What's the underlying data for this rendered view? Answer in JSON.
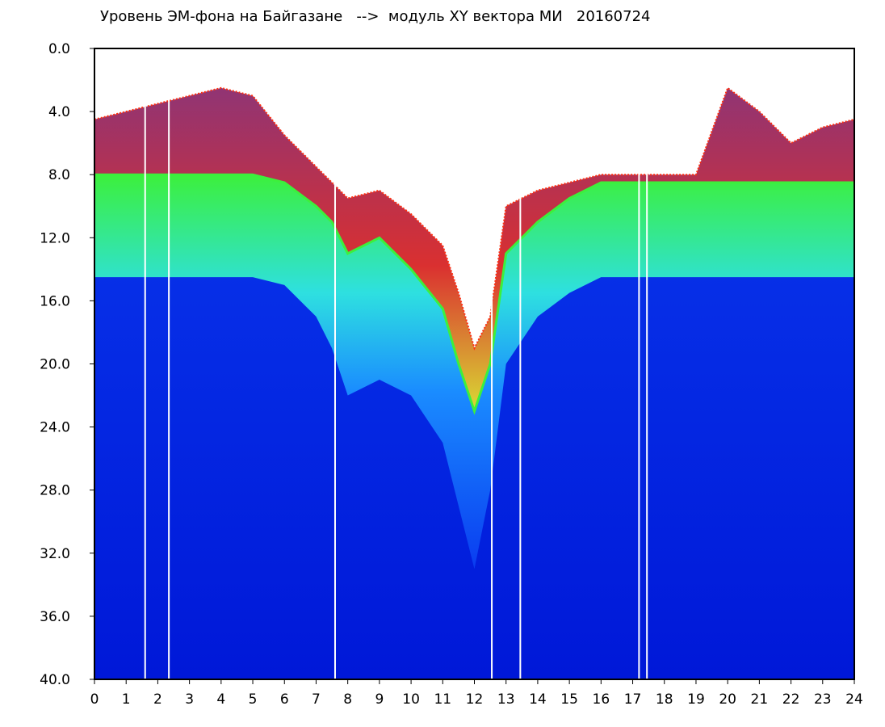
{
  "chart_data": {
    "type": "heatmap",
    "title": "Уровень ЭМ-фона на Байгазане   -->  модуль XY вектора МИ   20160724",
    "xlabel": "",
    "ylabel": "",
    "xlim": [
      0,
      24
    ],
    "ylim": [
      0,
      40
    ],
    "y_inverted": true,
    "x_ticks": [
      "0",
      "1",
      "2",
      "3",
      "4",
      "5",
      "6",
      "7",
      "8",
      "9",
      "10",
      "11",
      "12",
      "13",
      "14",
      "15",
      "16",
      "17",
      "18",
      "19",
      "20",
      "21",
      "22",
      "23",
      "24"
    ],
    "y_ticks": [
      "0.0",
      "4.0",
      "8.0",
      "12.0",
      "16.0",
      "20.0",
      "24.0",
      "28.0",
      "32.0",
      "36.0",
      "40.0"
    ],
    "colorscale": [
      "#0018d8",
      "#0a3cf0",
      "#1a8cff",
      "#2ee0e0",
      "#3cf03c",
      "#f0f020",
      "#ff3010",
      "#ffffff"
    ],
    "band_colors": {
      "background": "#0018d8",
      "deep": "#0a3cf0",
      "mid": "#1a8cff",
      "cyan": "#2ee0e0",
      "green": "#3cf03c",
      "yellow": "#f0f020",
      "red": "#ff3010",
      "empty": "#ffffff"
    },
    "activity_onset": {
      "x": [
        0,
        1,
        2,
        3,
        4,
        5,
        6,
        7,
        7.5,
        8,
        9,
        10,
        11,
        11.5,
        12,
        12.5,
        13,
        14,
        15,
        16,
        17,
        18,
        19,
        20,
        21,
        22,
        23,
        24
      ],
      "y": [
        4.5,
        4.0,
        3.5,
        3.0,
        2.5,
        3.0,
        5.5,
        7.5,
        8.5,
        9.5,
        9.0,
        10.5,
        12.5,
        15.5,
        19.0,
        17.0,
        10.0,
        9.0,
        8.5,
        8.0,
        8.0,
        8.0,
        8.0,
        2.5,
        4.0,
        6.0,
        5.0,
        4.5
      ]
    },
    "dense_band_top": {
      "x": [
        0,
        1,
        2,
        3,
        4,
        5,
        6,
        7,
        7.5,
        8,
        9,
        10,
        11,
        11.5,
        12,
        12.5,
        13,
        14,
        15,
        16,
        17,
        18,
        19,
        20,
        21,
        22,
        23,
        24
      ],
      "y": [
        8.0,
        8.0,
        8.0,
        8.0,
        8.0,
        8.0,
        8.5,
        10.0,
        11.0,
        13.0,
        12.0,
        14.0,
        16.5,
        20.0,
        23.0,
        20.0,
        13.0,
        11.0,
        9.5,
        8.5,
        8.5,
        8.5,
        8.5,
        8.5,
        8.5,
        8.5,
        8.5,
        8.5
      ]
    },
    "dense_band_bottom": {
      "x": [
        0,
        1,
        2,
        3,
        4,
        5,
        6,
        7,
        7.5,
        8,
        9,
        10,
        11,
        11.5,
        12,
        12.5,
        13,
        14,
        15,
        16,
        17,
        18,
        19,
        20,
        21,
        22,
        23,
        24
      ],
      "y": [
        14.5,
        14.5,
        14.5,
        14.5,
        14.5,
        14.5,
        15.0,
        17.0,
        19.0,
        22.0,
        21.0,
        22.0,
        25.0,
        29.0,
        33.0,
        28.0,
        20.0,
        17.0,
        15.5,
        14.5,
        14.5,
        14.5,
        14.5,
        14.5,
        14.5,
        14.5,
        14.5,
        14.5
      ]
    },
    "vertical_gaps_hours": [
      1.6,
      2.35,
      7.6,
      12.55,
      13.45,
      17.2,
      17.45
    ]
  }
}
